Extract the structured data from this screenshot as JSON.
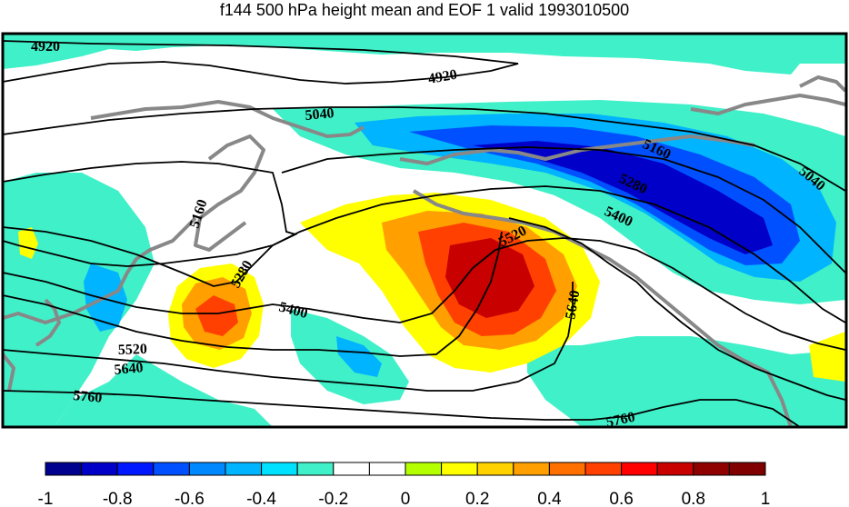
{
  "title": "f144 500 hPa height mean and EOF 1 valid 1993010500",
  "contour_labels": [
    "4920",
    "4920",
    "5040",
    "5040",
    "5160",
    "5160",
    "5280",
    "5280",
    "5400",
    "5400",
    "5520",
    "5520",
    "5640",
    "5640",
    "5760",
    "5760"
  ],
  "colorbar": {
    "ticks": [
      "-1",
      "-0.8",
      "-0.6",
      "-0.4",
      "-0.2",
      "0",
      "0.2",
      "0.4",
      "0.6",
      "0.8",
      "1"
    ],
    "colors": [
      "#00008f",
      "#0000c8",
      "#0018ff",
      "#0050ff",
      "#0088ff",
      "#00b4ff",
      "#00e0ff",
      "#40f0c8",
      "#ffffff",
      "#ffffff",
      "#b4ff00",
      "#ffff00",
      "#ffd200",
      "#ffa000",
      "#ff7000",
      "#ff4000",
      "#ff0000",
      "#c80000",
      "#8f0000",
      "#800000"
    ],
    "range": [
      -1,
      1
    ]
  },
  "colors": {
    "negative_weak": "#40f0c8",
    "negative_mid": "#00b4ff",
    "negative_strong": "#0050ff",
    "negative_max": "#0000c8",
    "positive_weak": "#ffff00",
    "positive_mid": "#ffa000",
    "positive_strong": "#ff4000",
    "positive_max": "#c80000",
    "coastline": "#888888",
    "contour": "#000000"
  }
}
